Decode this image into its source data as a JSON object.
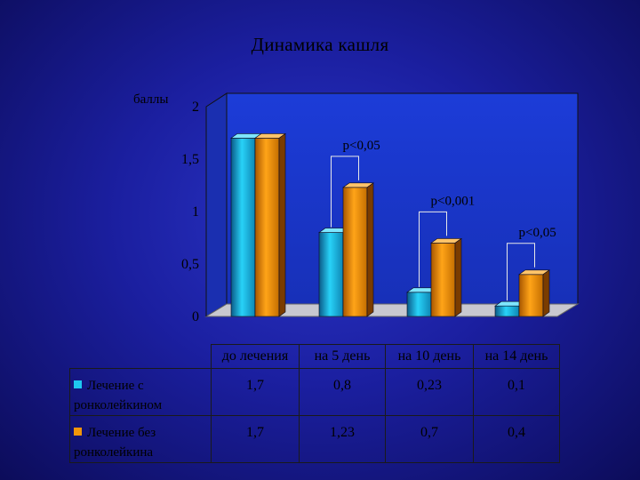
{
  "chart_data": {
    "type": "bar",
    "title": "Динамика кашля",
    "ylabel": "баллы",
    "ylim": [
      0,
      2
    ],
    "yticks": [
      "0",
      "0,5",
      "1",
      "1,5",
      "2"
    ],
    "categories": [
      "до лечения",
      "на 5 день",
      "на 10 день",
      "на 14 день"
    ],
    "series": [
      {
        "name": "Лечение с ронколейкином",
        "values": [
          1.7,
          0.8,
          0.23,
          0.1
        ],
        "labels": [
          "1,7",
          "0,8",
          "0,23",
          "0,1"
        ],
        "color": "#1ec8f0"
      },
      {
        "name": "Лечение без ронколейкина",
        "values": [
          1.7,
          1.23,
          0.7,
          0.4
        ],
        "labels": [
          "1,7",
          "1,23",
          "0,7",
          "0,4"
        ],
        "color": "#f0960a"
      }
    ],
    "annotations": [
      "p<0,05",
      "p<0,001",
      "p<0,05"
    ],
    "grid": false,
    "legend": "data-table"
  }
}
